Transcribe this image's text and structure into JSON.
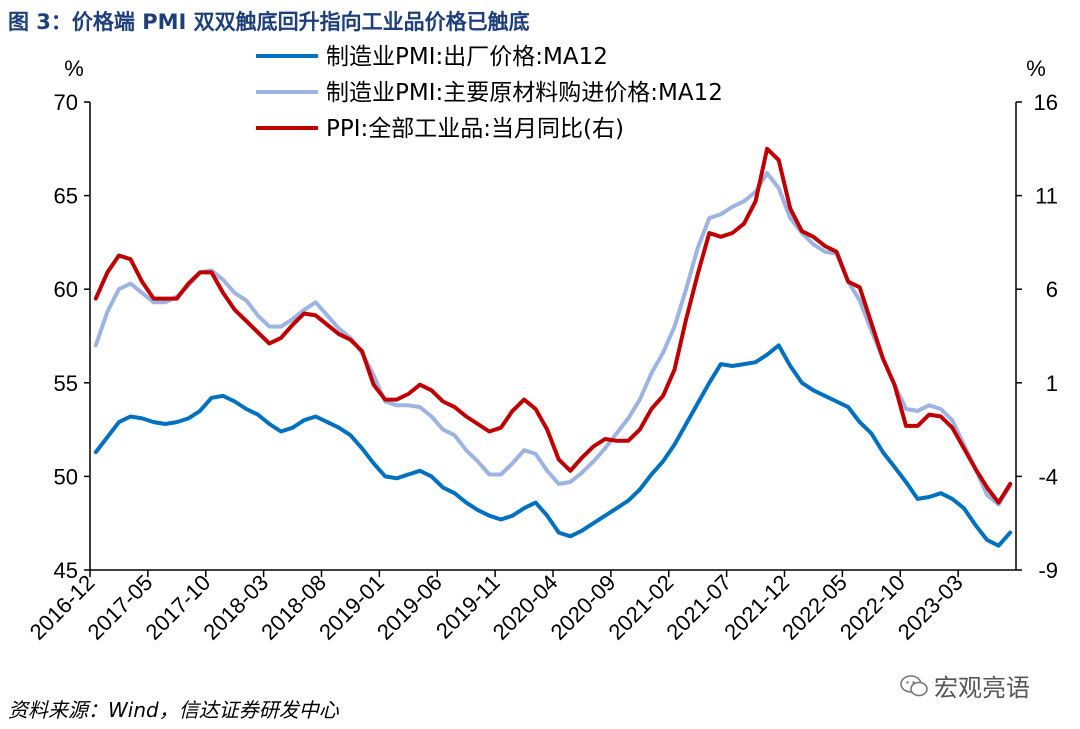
{
  "title": "图 3：价格端 PMI 双双触底回升指向工业品价格已触底",
  "source": "资料来源：Wind，信达证券研发中心",
  "watermark": "宏观亮语",
  "watermark_icon": "wechat-icon",
  "chart_data": {
    "type": "line",
    "left_unit": "%",
    "right_unit": "%",
    "ylim_left": [
      45,
      70
    ],
    "ylim_right": [
      -9,
      16
    ],
    "y_ticks_left": [
      45,
      50,
      55,
      60,
      65,
      70
    ],
    "y_ticks_right": [
      -9,
      -4,
      1,
      6,
      11,
      16
    ],
    "x_tick_labels": [
      "2016-12",
      "2017-05",
      "2017-10",
      "2018-03",
      "2018-08",
      "2019-01",
      "2019-06",
      "2019-11",
      "2020-04",
      "2020-09",
      "2021-02",
      "2021-07",
      "2021-12",
      "2022-05",
      "2022-10",
      "2023-03"
    ],
    "legend_position": "top-center",
    "x": [
      "2016-12",
      "2017-01",
      "2017-02",
      "2017-03",
      "2017-04",
      "2017-05",
      "2017-06",
      "2017-07",
      "2017-08",
      "2017-09",
      "2017-10",
      "2017-11",
      "2017-12",
      "2018-01",
      "2018-02",
      "2018-03",
      "2018-04",
      "2018-05",
      "2018-06",
      "2018-07",
      "2018-08",
      "2018-09",
      "2018-10",
      "2018-11",
      "2018-12",
      "2019-01",
      "2019-02",
      "2019-03",
      "2019-04",
      "2019-05",
      "2019-06",
      "2019-07",
      "2019-08",
      "2019-09",
      "2019-10",
      "2019-11",
      "2019-12",
      "2020-01",
      "2020-02",
      "2020-03",
      "2020-04",
      "2020-05",
      "2020-06",
      "2020-07",
      "2020-08",
      "2020-09",
      "2020-10",
      "2020-11",
      "2020-12",
      "2021-01",
      "2021-02",
      "2021-03",
      "2021-04",
      "2021-05",
      "2021-06",
      "2021-07",
      "2021-08",
      "2021-09",
      "2021-10",
      "2021-11",
      "2021-12",
      "2022-01",
      "2022-02",
      "2022-03",
      "2022-04",
      "2022-05",
      "2022-06",
      "2022-07",
      "2022-08",
      "2022-09",
      "2022-10",
      "2022-11",
      "2022-12",
      "2023-01",
      "2023-02",
      "2023-03",
      "2023-04",
      "2023-05",
      "2023-06",
      "2023-07"
    ],
    "series": [
      {
        "name": "制造业PMI:出厂价格:MA12",
        "axis": "left",
        "color": "#0070c0",
        "values": [
          51.3,
          52.1,
          52.9,
          53.2,
          53.1,
          52.9,
          52.8,
          52.9,
          53.1,
          53.5,
          54.2,
          54.3,
          54.0,
          53.6,
          53.3,
          52.8,
          52.4,
          52.6,
          53.0,
          53.2,
          52.9,
          52.6,
          52.2,
          51.5,
          50.7,
          50.0,
          49.9,
          50.1,
          50.3,
          50.0,
          49.4,
          49.1,
          48.6,
          48.2,
          47.9,
          47.7,
          47.9,
          48.3,
          48.6,
          47.9,
          47.0,
          46.8,
          47.1,
          47.5,
          47.9,
          48.3,
          48.7,
          49.3,
          50.1,
          50.8,
          51.7,
          52.8,
          53.9,
          55.0,
          56.0,
          55.9,
          56.0,
          56.1,
          56.5,
          57.0,
          55.9,
          55.0,
          54.6,
          54.3,
          54.0,
          53.7,
          52.9,
          52.3,
          51.3,
          50.5,
          49.7,
          48.8,
          48.9,
          49.1,
          48.8,
          48.3,
          47.4,
          46.6,
          46.3,
          47.0
        ]
      },
      {
        "name": "制造业PMI:主要原材料购进价格:MA12",
        "axis": "left",
        "color": "#9db3e2",
        "values": [
          57.0,
          58.8,
          60.0,
          60.3,
          59.8,
          59.3,
          59.3,
          59.6,
          60.2,
          60.9,
          61.0,
          60.5,
          59.8,
          59.4,
          58.6,
          58.0,
          58.0,
          58.4,
          58.9,
          59.3,
          58.6,
          57.9,
          57.4,
          56.6,
          55.4,
          54.0,
          53.8,
          53.8,
          53.7,
          53.2,
          52.5,
          52.2,
          51.4,
          50.8,
          50.1,
          50.1,
          50.7,
          51.4,
          51.2,
          50.3,
          49.6,
          49.7,
          50.2,
          50.8,
          51.5,
          52.3,
          53.1,
          54.1,
          55.5,
          56.6,
          58.0,
          60.0,
          62.2,
          63.8,
          64.0,
          64.4,
          64.7,
          65.2,
          66.2,
          65.4,
          63.8,
          63.0,
          62.4,
          62.0,
          61.9,
          60.4,
          59.4,
          57.8,
          56.3,
          54.9,
          53.6,
          53.5,
          53.8,
          53.6,
          53.0,
          51.7,
          50.4,
          49.0,
          48.5,
          49.5
        ]
      },
      {
        "name": "PPI:全部工业品:当月同比(右)",
        "axis": "right",
        "color": "#c00000",
        "values": [
          5.5,
          6.9,
          7.8,
          7.6,
          6.4,
          5.5,
          5.5,
          5.5,
          6.3,
          6.9,
          6.9,
          5.8,
          4.9,
          4.3,
          3.7,
          3.1,
          3.4,
          4.1,
          4.7,
          4.6,
          4.1,
          3.6,
          3.3,
          2.7,
          0.9,
          0.1,
          0.1,
          0.4,
          0.9,
          0.6,
          0.0,
          -0.3,
          -0.8,
          -1.2,
          -1.6,
          -1.4,
          -0.5,
          0.1,
          -0.4,
          -1.5,
          -3.1,
          -3.7,
          -3.0,
          -2.4,
          -2.0,
          -2.1,
          -2.1,
          -1.5,
          -0.4,
          0.3,
          1.7,
          4.4,
          6.8,
          9.0,
          8.8,
          9.0,
          9.5,
          10.7,
          13.5,
          12.9,
          10.3,
          9.1,
          8.8,
          8.3,
          8.0,
          6.4,
          6.1,
          4.2,
          2.3,
          0.9,
          -1.3,
          -1.3,
          -0.7,
          -0.8,
          -1.4,
          -2.5,
          -3.6,
          -4.6,
          -5.4,
          -4.4
        ]
      }
    ]
  }
}
